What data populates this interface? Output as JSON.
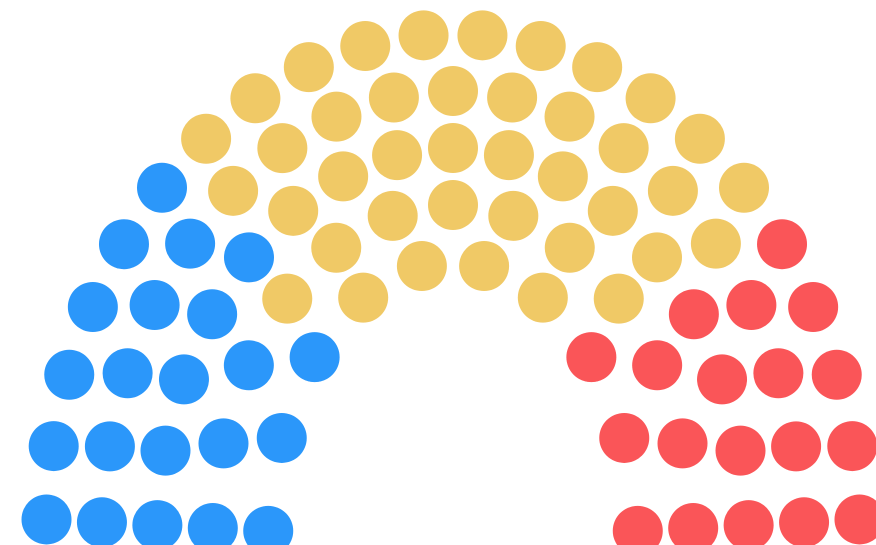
{
  "chart_data": {
    "type": "parliament",
    "series": [
      {
        "color": "#2b97fa",
        "values": 22
      },
      {
        "color": "#f0c966",
        "values": 40
      },
      {
        "color": "#fa5558",
        "values": 19
      }
    ]
  }
}
